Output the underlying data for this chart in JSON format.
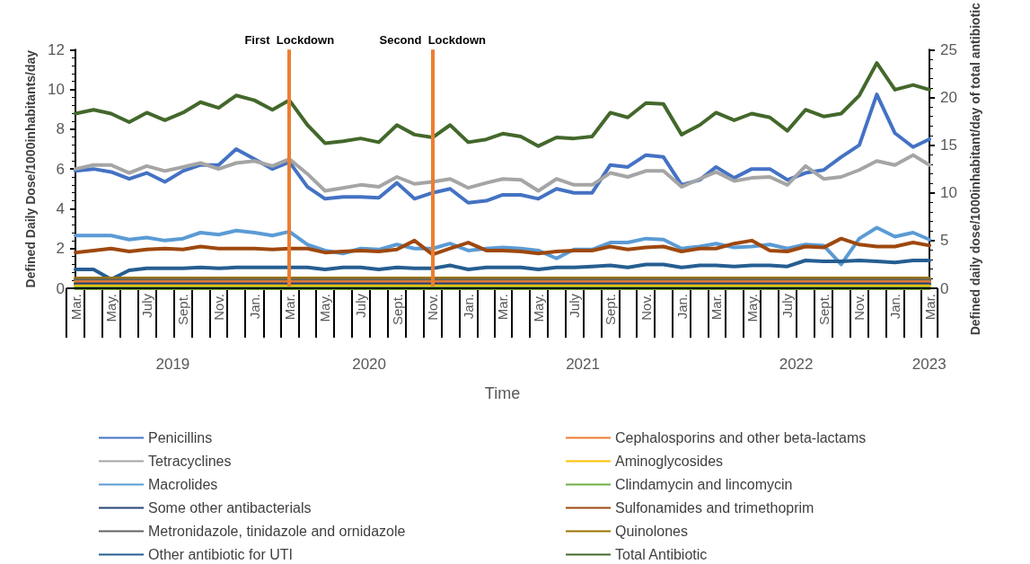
{
  "chart_data": {
    "type": "line",
    "xlabel": "Time",
    "ylabel": "Defined Daily Dose/1000inhabitants/day",
    "y2label": "Defined daily dose/1000inhabitant/day of total antibiotic",
    "x": [
      "2019-03",
      "2019-04",
      "2019-05",
      "2019-06",
      "2019-07",
      "2019-08",
      "2019-09",
      "2019-10",
      "2019-11",
      "2019-12",
      "2020-01",
      "2020-02",
      "2020-03",
      "2020-04",
      "2020-05",
      "2020-06",
      "2020-07",
      "2020-08",
      "2020-09",
      "2020-10",
      "2020-11",
      "2020-12",
      "2021-01",
      "2021-02",
      "2021-03",
      "2021-04",
      "2021-05",
      "2021-06",
      "2021-07",
      "2021-08",
      "2021-09",
      "2021-10",
      "2021-11",
      "2021-12",
      "2022-01",
      "2022-02",
      "2022-03",
      "2022-04",
      "2022-05",
      "2022-06",
      "2022-07",
      "2022-08",
      "2022-09",
      "2022-10",
      "2022-11",
      "2022-12",
      "2023-01",
      "2023-02",
      "2023-03"
    ],
    "xlim": [
      "2019-03",
      "2023-03"
    ],
    "xticks": [
      {
        "value": "2019-03",
        "label": "Mar."
      },
      {
        "value": "2019-05",
        "label": "May."
      },
      {
        "value": "2019-07",
        "label": "July"
      },
      {
        "value": "2019-09",
        "label": "Sept."
      },
      {
        "value": "2019-11",
        "label": "Nov."
      },
      {
        "value": "2020-01",
        "label": "Jan."
      },
      {
        "value": "2020-03",
        "label": "Mar."
      },
      {
        "value": "2020-05",
        "label": "May."
      },
      {
        "value": "2020-07",
        "label": "July"
      },
      {
        "value": "2020-09",
        "label": "Sept."
      },
      {
        "value": "2020-11",
        "label": "Nov."
      },
      {
        "value": "2021-01",
        "label": "Jan."
      },
      {
        "value": "2021-03",
        "label": "Mar."
      },
      {
        "value": "2021-05",
        "label": "May."
      },
      {
        "value": "2021-07",
        "label": "July"
      },
      {
        "value": "2021-09",
        "label": "Sept."
      },
      {
        "value": "2021-11",
        "label": "Nov."
      },
      {
        "value": "2022-01",
        "label": "Jan."
      },
      {
        "value": "2022-03",
        "label": "Mar."
      },
      {
        "value": "2022-05",
        "label": "May."
      },
      {
        "value": "2022-07",
        "label": "July"
      },
      {
        "value": "2022-09",
        "label": "Sept."
      },
      {
        "value": "2022-11",
        "label": "Nov."
      },
      {
        "value": "2023-01",
        "label": "Jan."
      },
      {
        "value": "2023-03",
        "label": "Mar."
      }
    ],
    "ylim": [
      0,
      12
    ],
    "yticks": [
      0,
      2,
      4,
      6,
      8,
      10,
      12
    ],
    "y2lim": [
      0,
      25
    ],
    "y2ticks": [
      0,
      5,
      10,
      15,
      20,
      25
    ],
    "grid": false,
    "legend": "bottom",
    "marker": "none",
    "line_style": "solid",
    "ref_lines": [
      {
        "axis": "x",
        "value": "2020-03",
        "label": "First  Lockdown",
        "color": "#ed7d31"
      },
      {
        "axis": "x",
        "value": "2020-11",
        "label": "Second  Lockdown",
        "color": "#ed7d31"
      }
    ],
    "annotations": [
      "2019",
      "2020",
      "2021",
      "2022",
      "2023"
    ],
    "series": [
      {
        "name": "Penicillins",
        "color": "#4472c4",
        "values": [
          5.9,
          6.0,
          5.85,
          5.5,
          5.8,
          5.35,
          5.9,
          6.2,
          6.2,
          7.0,
          6.5,
          6.0,
          6.35,
          5.1,
          4.5,
          4.6,
          4.6,
          4.55,
          5.3,
          4.5,
          4.8,
          5.0,
          4.3,
          4.4,
          4.7,
          4.7,
          4.5,
          5.0,
          4.8,
          4.8,
          6.2,
          6.1,
          6.7,
          6.6,
          5.2,
          5.45,
          6.1,
          5.55,
          6.0,
          6.0,
          5.45,
          5.8,
          5.95,
          6.6,
          7.2,
          9.75,
          7.8,
          7.1,
          7.5
        ]
      },
      {
        "name": "Cephalosporins and other beta-lactams",
        "color": "#ed7d31",
        "values": [
          0.3,
          0.3,
          0.3,
          0.3,
          0.3,
          0.3,
          0.3,
          0.3,
          0.3,
          0.3,
          0.3,
          0.3,
          0.3,
          0.3,
          0.3,
          0.3,
          0.3,
          0.3,
          0.3,
          0.3,
          0.3,
          0.3,
          0.3,
          0.3,
          0.3,
          0.3,
          0.3,
          0.3,
          0.3,
          0.3,
          0.3,
          0.3,
          0.3,
          0.3,
          0.3,
          0.3,
          0.3,
          0.3,
          0.3,
          0.3,
          0.3,
          0.3,
          0.3,
          0.3,
          0.3,
          0.3,
          0.3,
          0.3,
          0.3
        ]
      },
      {
        "name": "Tetracyclines",
        "color": "#a5a5a5",
        "values": [
          6.0,
          6.2,
          6.2,
          5.8,
          6.15,
          5.9,
          6.1,
          6.3,
          6.0,
          6.3,
          6.4,
          6.15,
          6.5,
          5.75,
          4.9,
          5.05,
          5.2,
          5.1,
          5.6,
          5.25,
          5.35,
          5.5,
          5.05,
          5.3,
          5.5,
          5.45,
          4.9,
          5.5,
          5.2,
          5.2,
          5.8,
          5.6,
          5.9,
          5.9,
          5.1,
          5.5,
          5.85,
          5.4,
          5.55,
          5.6,
          5.2,
          6.15,
          5.5,
          5.6,
          5.95,
          6.4,
          6.2,
          6.7,
          6.2
        ]
      },
      {
        "name": "Aminoglycosides",
        "color": "#ffc000",
        "values": [
          0.1,
          0.1,
          0.1,
          0.1,
          0.1,
          0.1,
          0.1,
          0.1,
          0.1,
          0.1,
          0.1,
          0.1,
          0.1,
          0.1,
          0.1,
          0.1,
          0.1,
          0.1,
          0.1,
          0.1,
          0.1,
          0.1,
          0.1,
          0.1,
          0.1,
          0.1,
          0.1,
          0.1,
          0.1,
          0.1,
          0.1,
          0.1,
          0.1,
          0.1,
          0.1,
          0.1,
          0.1,
          0.1,
          0.1,
          0.1,
          0.1,
          0.1,
          0.1,
          0.1,
          0.1,
          0.1,
          0.1,
          0.1,
          0.1
        ]
      },
      {
        "name": "Macrolides",
        "color": "#5b9bd5",
        "values": [
          2.65,
          2.65,
          2.65,
          2.45,
          2.55,
          2.4,
          2.5,
          2.8,
          2.7,
          2.9,
          2.8,
          2.65,
          2.85,
          2.2,
          1.9,
          1.75,
          2.0,
          1.95,
          2.2,
          2.0,
          2.0,
          2.25,
          1.9,
          2.0,
          2.05,
          2.0,
          1.9,
          1.5,
          1.95,
          1.95,
          2.3,
          2.3,
          2.5,
          2.45,
          2.0,
          2.1,
          2.25,
          2.05,
          2.1,
          2.2,
          2.0,
          2.2,
          2.15,
          1.2,
          2.5,
          3.05,
          2.6,
          2.8,
          2.45
        ]
      },
      {
        "name": "Clindamycin and lincomycin",
        "color": "#70ad47",
        "values": [
          0,
          0,
          0,
          0,
          0,
          0,
          0,
          0,
          0,
          0,
          0,
          0,
          0,
          0,
          0,
          0,
          0,
          0,
          0,
          0,
          0,
          0,
          0,
          0,
          0,
          0,
          0,
          0,
          0,
          0,
          0,
          0,
          0,
          0,
          0,
          0,
          0,
          0,
          0,
          0,
          0,
          0,
          0,
          0,
          0,
          0,
          0,
          0,
          0
        ]
      },
      {
        "name": "Some other antibacterials",
        "color": "#264478",
        "values": [
          0.2,
          0.2,
          0.2,
          0.2,
          0.2,
          0.2,
          0.2,
          0.2,
          0.2,
          0.2,
          0.2,
          0.2,
          0.2,
          0.2,
          0.2,
          0.2,
          0.2,
          0.2,
          0.2,
          0.2,
          0.2,
          0.2,
          0.2,
          0.2,
          0.2,
          0.2,
          0.2,
          0.2,
          0.2,
          0.2,
          0.2,
          0.2,
          0.2,
          0.2,
          0.2,
          0.2,
          0.2,
          0.2,
          0.2,
          0.2,
          0.2,
          0.2,
          0.2,
          0.2,
          0.2,
          0.2,
          0.2,
          0.2,
          0.2
        ]
      },
      {
        "name": "Sulfonamides and trimethoprim",
        "color": "#9e480e",
        "values": [
          1.8,
          1.9,
          2.0,
          1.85,
          1.95,
          2.0,
          1.95,
          2.1,
          2.0,
          2.0,
          2.0,
          1.95,
          2.0,
          2.0,
          1.8,
          1.85,
          1.9,
          1.85,
          1.95,
          2.4,
          1.7,
          2.0,
          2.3,
          1.9,
          1.9,
          1.85,
          1.75,
          1.85,
          1.9,
          1.9,
          2.1,
          1.95,
          2.05,
          2.1,
          1.85,
          2.0,
          2.0,
          2.25,
          2.4,
          1.9,
          1.85,
          2.1,
          2.05,
          2.5,
          2.2,
          2.1,
          2.1,
          2.3,
          2.15
        ]
      },
      {
        "name": "Metronidazole, tinidazole and ornidazole",
        "color": "#636363",
        "values": [
          0.4,
          0.4,
          0.4,
          0.4,
          0.4,
          0.4,
          0.4,
          0.4,
          0.4,
          0.4,
          0.4,
          0.4,
          0.4,
          0.4,
          0.4,
          0.4,
          0.4,
          0.4,
          0.4,
          0.4,
          0.4,
          0.4,
          0.4,
          0.4,
          0.4,
          0.4,
          0.4,
          0.4,
          0.4,
          0.4,
          0.4,
          0.4,
          0.4,
          0.4,
          0.4,
          0.4,
          0.4,
          0.4,
          0.4,
          0.4,
          0.4,
          0.4,
          0.4,
          0.4,
          0.4,
          0.4,
          0.4,
          0.4,
          0.4
        ]
      },
      {
        "name": "Quinolones",
        "color": "#997300",
        "values": [
          0.5,
          0.5,
          0.5,
          0.5,
          0.5,
          0.5,
          0.5,
          0.5,
          0.5,
          0.5,
          0.5,
          0.5,
          0.5,
          0.5,
          0.5,
          0.5,
          0.5,
          0.5,
          0.5,
          0.5,
          0.5,
          0.5,
          0.5,
          0.5,
          0.5,
          0.5,
          0.5,
          0.5,
          0.5,
          0.5,
          0.5,
          0.5,
          0.5,
          0.5,
          0.5,
          0.5,
          0.5,
          0.5,
          0.5,
          0.5,
          0.5,
          0.5,
          0.5,
          0.5,
          0.5,
          0.5,
          0.5,
          0.5,
          0.5
        ]
      },
      {
        "name": "Other antibiotic for UTI",
        "color": "#255e91",
        "values": [
          0.95,
          0.95,
          0.45,
          0.9,
          1.0,
          1.0,
          1.0,
          1.05,
          1.0,
          1.05,
          1.05,
          1.05,
          1.05,
          1.05,
          0.95,
          1.05,
          1.05,
          0.95,
          1.05,
          1.0,
          1.0,
          1.15,
          0.95,
          1.05,
          1.05,
          1.05,
          0.95,
          1.05,
          1.05,
          1.1,
          1.15,
          1.05,
          1.2,
          1.2,
          1.05,
          1.15,
          1.15,
          1.1,
          1.15,
          1.15,
          1.1,
          1.4,
          1.35,
          1.35,
          1.4,
          1.35,
          1.3,
          1.4,
          1.4
        ]
      },
      {
        "name": "Total Antibiotic",
        "color": "#43682b",
        "axis": "y2",
        "values": [
          18.3,
          18.7,
          18.3,
          17.4,
          18.4,
          17.6,
          18.4,
          19.5,
          18.9,
          20.2,
          19.7,
          18.7,
          19.7,
          17.1,
          15.2,
          15.4,
          15.7,
          15.3,
          17.1,
          16.1,
          15.8,
          17.1,
          15.3,
          15.6,
          16.2,
          15.9,
          14.9,
          15.8,
          15.7,
          15.9,
          18.4,
          17.9,
          19.4,
          19.3,
          16.1,
          17.1,
          18.4,
          17.6,
          18.3,
          17.9,
          16.5,
          18.7,
          18.0,
          18.3,
          20.2,
          23.6,
          20.8,
          21.3,
          20.8
        ]
      }
    ]
  }
}
